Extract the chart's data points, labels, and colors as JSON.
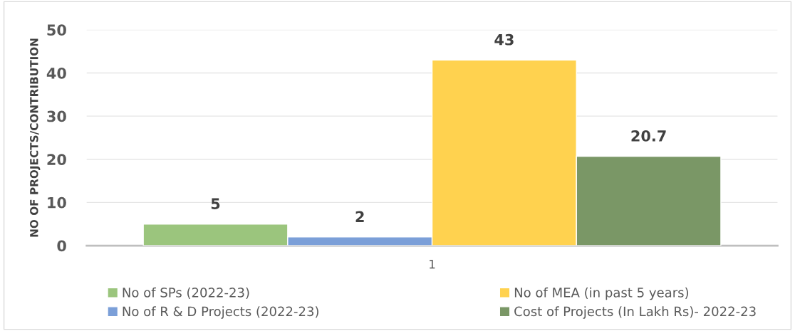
{
  "chart_data": {
    "type": "bar",
    "ylabel": "NO OF PROJECTS/CONTRIBUTION",
    "categories": [
      "1"
    ],
    "series": [
      {
        "name": "No of SPs (2022-23)",
        "color": "#9bc57d",
        "values": [
          5
        ]
      },
      {
        "name": "No of R & D Projects (2022-23)",
        "color": "#7b9fd8",
        "values": [
          2
        ]
      },
      {
        "name": "No of MEA (in past 5 years)",
        "color": "#ffd24f",
        "values": [
          43
        ]
      },
      {
        "name": "Cost of Projects (In Lakh Rs)- 2022-23",
        "color": "#7a9766",
        "values": [
          20.7
        ]
      }
    ],
    "ylim": [
      0,
      50
    ],
    "yticks": [
      0,
      10,
      20,
      30,
      40,
      50
    ],
    "grid": "y",
    "legend": "bottom",
    "data_labels": true
  }
}
